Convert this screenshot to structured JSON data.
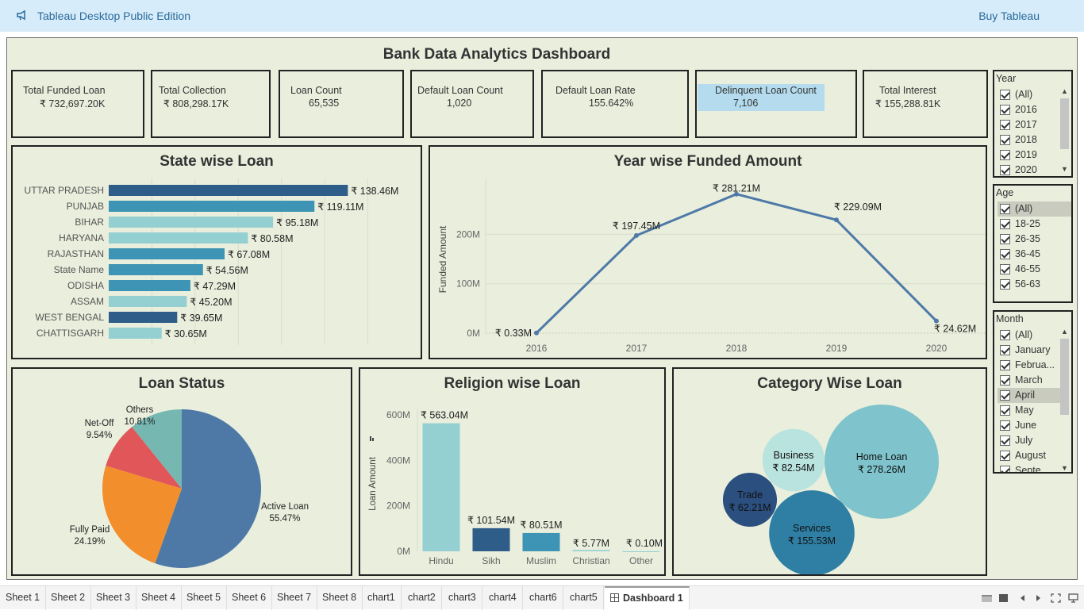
{
  "app": {
    "title": "Tableau Desktop Public Edition",
    "buy_label": "Buy Tableau"
  },
  "dashboard": {
    "title": "Bank Data Analytics Dashboard"
  },
  "kpis": [
    {
      "label": "Total Funded Loan",
      "value": "₹ 732,697.20K"
    },
    {
      "label": "Total Collection",
      "value": "₹ 808,298.17K"
    },
    {
      "label": "Loan Count",
      "value": "65,535"
    },
    {
      "label": "Default Loan Count",
      "value": "1,020"
    },
    {
      "label": "Default Loan Rate",
      "value": "155.642%"
    },
    {
      "label": "Delinquent Loan Count",
      "value": "7,106"
    },
    {
      "label": "Total Interest",
      "value": "₹ 155,288.81K"
    }
  ],
  "filters": {
    "year": {
      "title": "Year",
      "items": [
        "(All)",
        "2016",
        "2017",
        "2018",
        "2019",
        "2020"
      ]
    },
    "age": {
      "title": "Age",
      "items": [
        "(All)",
        "18-25",
        "26-35",
        "36-45",
        "46-55",
        "56-63"
      ]
    },
    "month": {
      "title": "Month",
      "items": [
        "(All)",
        "January",
        "Februa...",
        "March",
        "April",
        "May",
        "June",
        "July",
        "August",
        "Septe..."
      ]
    }
  },
  "tabs": [
    "Sheet 1",
    "Sheet 2",
    "Sheet 3",
    "Sheet 4",
    "Sheet 5",
    "Sheet 6",
    "Sheet 7",
    "Sheet 8",
    "chart1",
    "chart2",
    "chart3",
    "chart4",
    "chart6",
    "chart5",
    "Dashboard 1"
  ],
  "colors": {
    "dark_blue": "#2f5d89",
    "mid_blue": "#3d94b4",
    "light_teal": "#94cfd1",
    "line": "#4e79a7",
    "pie_active": "#4e79a7",
    "pie_fully": "#f28e2b",
    "pie_net": "#e15759",
    "pie_others": "#76b7b2"
  },
  "chart_data": [
    {
      "type": "bar",
      "title": "State wise Loan",
      "categories": [
        "UTTAR PRADESH",
        "PUNJAB",
        "BIHAR",
        "HARYANA",
        "RAJASTHAN",
        "State Name",
        "ODISHA",
        "ASSAM",
        "WEST BENGAL",
        "CHATTISGARH"
      ],
      "values": [
        138.46,
        119.11,
        95.18,
        80.58,
        67.08,
        54.56,
        47.29,
        45.2,
        39.65,
        30.65
      ],
      "labels": [
        "₹ 138.46M",
        "₹ 119.11M",
        "₹ 95.18M",
        "₹ 80.58M",
        "₹ 67.08M",
        "₹ 54.56M",
        "₹ 47.29M",
        "₹ 45.20M",
        "₹ 39.65M",
        "₹ 30.65M"
      ],
      "color_shade": [
        "dark",
        "mid",
        "light",
        "light",
        "mid",
        "mid",
        "mid",
        "light",
        "dark",
        "light"
      ],
      "xlim": [
        0,
        170
      ]
    },
    {
      "type": "line",
      "title": "Year wise Funded Amount",
      "x": [
        "2016",
        "2017",
        "2018",
        "2019",
        "2020"
      ],
      "values": [
        0.33,
        197.45,
        281.21,
        229.09,
        24.62
      ],
      "labels": [
        "₹ 0.33M",
        "₹ 197.45M",
        "₹ 281.21M",
        "₹ 229.09M",
        "₹ 24.62M"
      ],
      "ylabel": "Funded Amount",
      "yticks": [
        "0M",
        "100M",
        "200M"
      ],
      "ytick_values": [
        0,
        100,
        200
      ],
      "ylim": [
        0,
        300
      ]
    },
    {
      "type": "pie",
      "title": "Loan Status",
      "slices": [
        {
          "name": "Active Loan",
          "value": 55.47,
          "label": "55.47%"
        },
        {
          "name": "Fully Paid",
          "value": 24.19,
          "label": "24.19%"
        },
        {
          "name": "Net-Off",
          "value": 9.54,
          "label": "9.54%"
        },
        {
          "name": "Others",
          "value": 10.81,
          "label": "10.81%"
        }
      ]
    },
    {
      "type": "bar",
      "title": "Religion wise Loan",
      "categories": [
        "Hindu",
        "Sikh",
        "Muslim",
        "Christian",
        "Other"
      ],
      "values": [
        563.04,
        101.54,
        80.51,
        5.77,
        0.1
      ],
      "labels": [
        "₹ 563.04M",
        "₹ 101.54M",
        "₹ 80.51M",
        "₹ 5.77M",
        "₹ 0.10M"
      ],
      "color_shade": [
        "light",
        "dark",
        "mid",
        "light",
        "light"
      ],
      "ylabel": "Loan Amount",
      "yticks": [
        "0M",
        "200M",
        "400M",
        "600M"
      ],
      "ytick_values": [
        0,
        200,
        400,
        600
      ],
      "ylim": [
        0,
        600
      ]
    },
    {
      "type": "bubble",
      "title": "Category Wise Loan",
      "items": [
        {
          "name": "Home Loan",
          "value": 278.26,
          "label": "₹ 278.26M",
          "shade": "light"
        },
        {
          "name": "Services",
          "value": 155.53,
          "label": "₹ 155.53M",
          "shade": "mid"
        },
        {
          "name": "Business",
          "value": 82.54,
          "label": "₹ 82.54M",
          "shade": "pale"
        },
        {
          "name": "Trade",
          "value": 62.21,
          "label": "₹ 62.21M",
          "shade": "dark"
        }
      ]
    }
  ]
}
